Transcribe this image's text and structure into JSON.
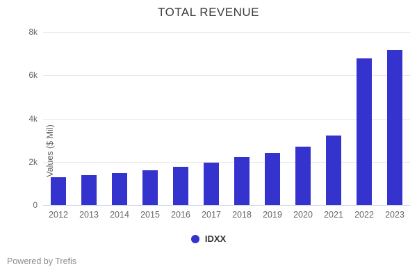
{
  "chart_data": {
    "type": "bar",
    "title": "TOTAL REVENUE",
    "ylabel": "Values ($ Mil)",
    "xlabel": "",
    "categories": [
      "2012",
      "2013",
      "2014",
      "2015",
      "2016",
      "2017",
      "2018",
      "2019",
      "2020",
      "2021",
      "2022",
      "2023"
    ],
    "series": [
      {
        "name": "IDXX",
        "color": "#3533cd",
        "values": [
          1290,
          1380,
          1485,
          1600,
          1775,
          1970,
          2215,
          2405,
          2705,
          3215,
          6790,
          7150
        ]
      }
    ],
    "ylim": [
      0,
      8000
    ],
    "yticks": [
      {
        "value": 8000,
        "label": "8k"
      },
      {
        "value": 6000,
        "label": "6k"
      },
      {
        "value": 4000,
        "label": "4k"
      },
      {
        "value": 2000,
        "label": "2k"
      },
      {
        "value": 0,
        "label": "0"
      }
    ],
    "grid": true,
    "legend_position": "bottom",
    "colors": {
      "bar": "#3533cd",
      "gridline": "#e6e6e6",
      "axis_line": "#ccd6eb",
      "tick_label": "#666666",
      "title": "#3c3c3c",
      "legend_text": "#333333"
    }
  },
  "legend": {
    "label": "IDXX"
  },
  "footer": {
    "powered_by": "Powered by Trefis"
  }
}
